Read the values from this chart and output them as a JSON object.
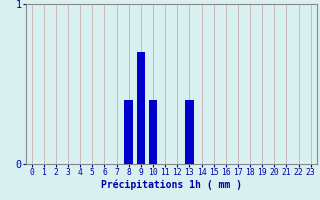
{
  "hours": [
    0,
    1,
    2,
    3,
    4,
    5,
    6,
    7,
    8,
    9,
    10,
    11,
    12,
    13,
    14,
    15,
    16,
    17,
    18,
    19,
    20,
    21,
    22,
    23
  ],
  "values": [
    0,
    0,
    0,
    0,
    0,
    0,
    0,
    0,
    0.4,
    0.7,
    0.4,
    0,
    0,
    0.4,
    0,
    0,
    0,
    0,
    0,
    0,
    0,
    0,
    0,
    0
  ],
  "bar_color": "#0000cc",
  "background_color": "#d8f0f0",
  "grid_color_v": "#c8b0b0",
  "grid_color_h": "#c8b0b0",
  "axis_color": "#888888",
  "text_color": "#0000aa",
  "xlabel": "Précipitations 1h ( mm )",
  "ylim": [
    0,
    1.0
  ],
  "xlim": [
    -0.5,
    23.5
  ],
  "yticks": [
    0,
    1
  ],
  "xlabel_fontsize": 7.0,
  "tick_fontsize": 5.8
}
